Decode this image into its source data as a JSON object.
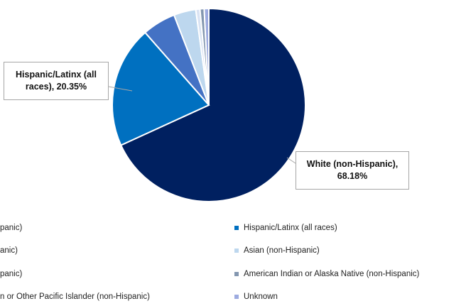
{
  "chart_data": {
    "type": "pie",
    "slices": [
      {
        "label": "White (non-Hispanic)",
        "value": 68.18,
        "color": "#002060"
      },
      {
        "label": "Hispanic/Latinx (all races)",
        "value": 20.35,
        "color": "#0070c0"
      },
      {
        "label": "Black (non-Hispanic)",
        "value": 5.6,
        "color": "#4472c4"
      },
      {
        "label": "Asian (non-Hispanic)",
        "value": 3.7,
        "color": "#bdd7ee"
      },
      {
        "label": "Native Hawaiian or Other Pacific Islander (non-Hispanic)",
        "value": 0.7,
        "color": "#dae3f3"
      },
      {
        "label": "American Indian or Alaska Native (non-Hispanic)",
        "value": 0.7,
        "color": "#8497b0"
      },
      {
        "label": "Unknown",
        "value": 0.77,
        "color": "#9dabe0"
      }
    ],
    "data_labels": {
      "hispanic": {
        "line1": "Hispanic/Latinx (all",
        "line2": "races), 20.35%"
      },
      "white": {
        "line1": "White (non-Hispanic),",
        "line2": "68.18%"
      }
    },
    "legend": {
      "placement": "bottom",
      "left_column_visible_text": [
        "panic)",
        "anic)",
        "panic)",
        "n or Other Pacific Islander (non-Hispanic)"
      ],
      "right_column": [
        {
          "label": "Hispanic/Latinx (all races)",
          "color": "#0070c0"
        },
        {
          "label": "Asian (non-Hispanic)",
          "color": "#bdd7ee"
        },
        {
          "label": "American Indian or Alaska Native (non-Hispanic)",
          "color": "#8497b0"
        },
        {
          "label": "Unknown",
          "color": "#9dabe0"
        }
      ]
    }
  }
}
